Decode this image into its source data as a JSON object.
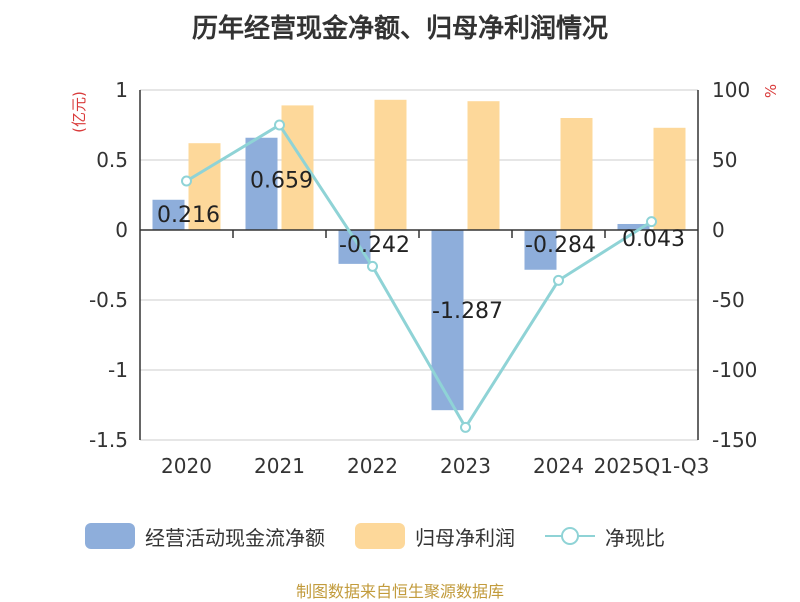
{
  "chart_data": {
    "type": "bar+line",
    "title": "历年经营现金净额、归母净利润情况",
    "categories": [
      "2020",
      "2021",
      "2022",
      "2023",
      "2024",
      "2025Q1-Q3"
    ],
    "left_axis": {
      "unit": "(亿元)",
      "ylim": [
        -1.5,
        1
      ],
      "ticks": [
        "1",
        "0.5",
        "0",
        "-0.5",
        "-1",
        "-1.5"
      ],
      "tick_values": [
        1,
        0.5,
        0,
        -0.5,
        -1,
        -1.5
      ]
    },
    "right_axis": {
      "unit": "%",
      "ylim": [
        -150,
        100
      ],
      "ticks": [
        "100",
        "50",
        "0",
        "-50",
        "-100",
        "-150"
      ],
      "tick_values": [
        100,
        50,
        0,
        -50,
        -100,
        -150
      ]
    },
    "series": [
      {
        "name": "经营活动现金流净额",
        "type": "bar",
        "axis": "left",
        "color": "#8eaedb",
        "values": [
          0.216,
          0.659,
          -0.242,
          -1.287,
          -0.284,
          0.043
        ],
        "labels": [
          "0.216",
          "0.659",
          "-0.242",
          "-1.287",
          "-0.284",
          "0.043"
        ]
      },
      {
        "name": "归母净利润",
        "type": "bar",
        "axis": "left",
        "color": "#fdd89a",
        "values": [
          0.62,
          0.89,
          0.93,
          0.92,
          0.8,
          0.73
        ]
      },
      {
        "name": "净现比",
        "type": "line",
        "axis": "right",
        "color": "#8fd3d6",
        "values": [
          35,
          75,
          -26,
          -141,
          -36,
          6
        ]
      }
    ],
    "legend_position": "bottom",
    "grid": true
  },
  "source": "制图数据来自恒生聚源数据库"
}
